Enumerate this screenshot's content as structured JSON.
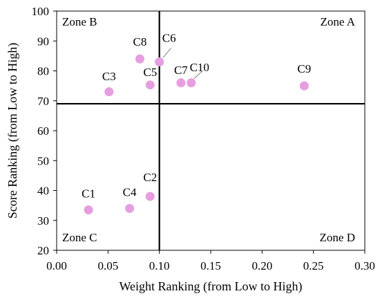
{
  "chart_data": {
    "type": "scatter",
    "title": "",
    "xlabel": "Weight Ranking (from Low to High)",
    "ylabel": "Score Ranking (from Low to High)",
    "xlim": [
      0.0,
      0.3
    ],
    "ylim": [
      20,
      100
    ],
    "x_ticks": [
      "0.00",
      "0.05",
      "0.10",
      "0.15",
      "0.20",
      "0.25",
      "0.30"
    ],
    "x_tick_values": [
      0.0,
      0.05,
      0.1,
      0.15,
      0.2,
      0.25,
      0.3
    ],
    "y_ticks": [
      "20",
      "30",
      "40",
      "50",
      "60",
      "70",
      "80",
      "90",
      "100"
    ],
    "y_tick_values": [
      20,
      30,
      40,
      50,
      60,
      70,
      80,
      90,
      100
    ],
    "grid": false,
    "divider_x": 0.1,
    "divider_y": 69,
    "point_color": "#e69ee0",
    "points": [
      {
        "label": "C1",
        "x": 0.031,
        "y": 33.5
      },
      {
        "label": "C2",
        "x": 0.091,
        "y": 38
      },
      {
        "label": "C3",
        "x": 0.051,
        "y": 73
      },
      {
        "label": "C4",
        "x": 0.071,
        "y": 34
      },
      {
        "label": "C5",
        "x": 0.091,
        "y": 75.3
      },
      {
        "label": "C6",
        "x": 0.1,
        "y": 83
      },
      {
        "label": "C7",
        "x": 0.121,
        "y": 76
      },
      {
        "label": "C8",
        "x": 0.081,
        "y": 84
      },
      {
        "label": "C9",
        "x": 0.241,
        "y": 75
      },
      {
        "label": "C10",
        "x": 0.131,
        "y": 76
      }
    ],
    "zones": [
      {
        "label": "Zone A",
        "position": "top-right"
      },
      {
        "label": "Zone B",
        "position": "top-left"
      },
      {
        "label": "Zone C",
        "position": "bottom-left"
      },
      {
        "label": "Zone D",
        "position": "bottom-right"
      }
    ]
  }
}
